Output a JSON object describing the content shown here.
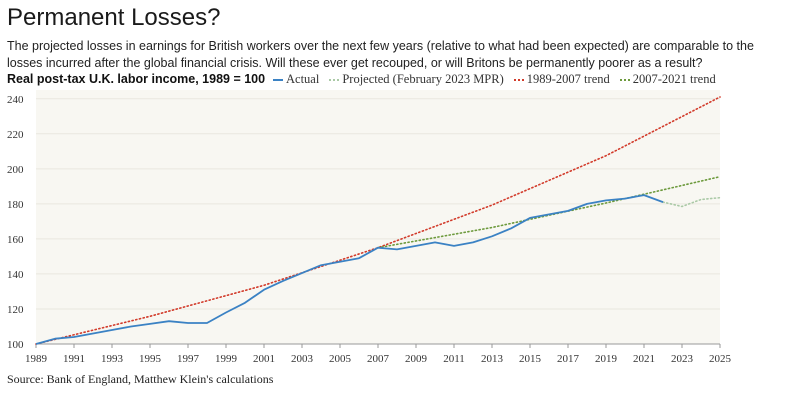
{
  "header": {
    "title": "Permanent Losses?",
    "subtitle": "The projected losses in earnings for British workers over the next few years (relative to what had been expected) are comparable to the losses incurred after the global financial crisis. Will these ever get recouped, or will Britons be permanently poorer as a result?"
  },
  "footer": {
    "source": "Source: Bank of England, Matthew Klein's calculations"
  },
  "chart_data": {
    "type": "line",
    "ylabel": "Real post-tax U.K. labor income, 1989 = 100",
    "xlim": [
      1989,
      2025
    ],
    "ylim": [
      100,
      245
    ],
    "x_ticks": [
      "1989",
      "1991",
      "1993",
      "1995",
      "1997",
      "1999",
      "2001",
      "2003",
      "2005",
      "2007",
      "2009",
      "2011",
      "2013",
      "2015",
      "2017",
      "2019",
      "2021",
      "2023",
      "2025"
    ],
    "y_ticks": [
      "100",
      "120",
      "140",
      "160",
      "180",
      "200",
      "220",
      "240"
    ],
    "background": "#f8f7f2",
    "series": [
      {
        "name": "Actual",
        "style": "solid",
        "color": "#3b82c4",
        "x": [
          1989,
          1990,
          1991,
          1992,
          1993,
          1994,
          1995,
          1996,
          1997,
          1998,
          1999,
          2000,
          2001,
          2002,
          2003,
          2004,
          2005,
          2006,
          2007,
          2008,
          2009,
          2010,
          2011,
          2012,
          2013,
          2014,
          2015,
          2016,
          2017,
          2018,
          2019,
          2020,
          2021,
          2022
        ],
        "y": [
          100,
          103,
          104,
          106,
          108,
          110,
          111.5,
          113,
          112,
          112,
          118,
          123.5,
          131,
          136,
          140.5,
          145,
          147,
          149,
          155,
          154,
          156,
          158,
          156,
          158,
          161.5,
          166,
          172,
          174,
          176,
          180,
          182,
          183,
          185,
          181
        ]
      },
      {
        "name": "Projected (February 2023 MPR)",
        "style": "dotted",
        "color": "#aac9a6",
        "x": [
          2022,
          2023,
          2024,
          2025
        ],
        "y": [
          181,
          178.5,
          182.5,
          183.5
        ]
      },
      {
        "name": "1989-2007 trend",
        "style": "dotted",
        "color": "#d23b2b",
        "x": [
          1989,
          1995,
          2001,
          2007,
          2013,
          2019,
          2025
        ],
        "y": [
          100,
          115.8,
          133.5,
          155,
          179.3,
          207.5,
          241
        ]
      },
      {
        "name": "2007-2021 trend",
        "style": "dotted",
        "color": "#6d9a3d",
        "x": [
          2007,
          2013,
          2019,
          2025
        ],
        "y": [
          155,
          166.5,
          180.5,
          195.5
        ]
      }
    ]
  }
}
